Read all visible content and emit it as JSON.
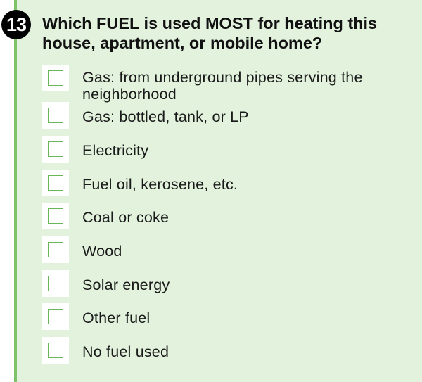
{
  "question": {
    "number": "13",
    "text": "Which FUEL is used MOST for heating this house, apartment, or mobile home?"
  },
  "options": [
    {
      "label": "Gas: from underground pipes serving the neighborhood"
    },
    {
      "label": "Gas: bottled, tank, or LP"
    },
    {
      "label": "Electricity"
    },
    {
      "label": "Fuel oil, kerosene, etc."
    },
    {
      "label": "Coal or coke"
    },
    {
      "label": "Wood"
    },
    {
      "label": "Solar energy"
    },
    {
      "label": "Other fuel"
    },
    {
      "label": "No fuel used"
    }
  ],
  "colors": {
    "panel_background": "#e2f2dd",
    "accent_green": "#7cc36a",
    "checkbox_border": "#68b658",
    "number_badge": "#000000"
  }
}
